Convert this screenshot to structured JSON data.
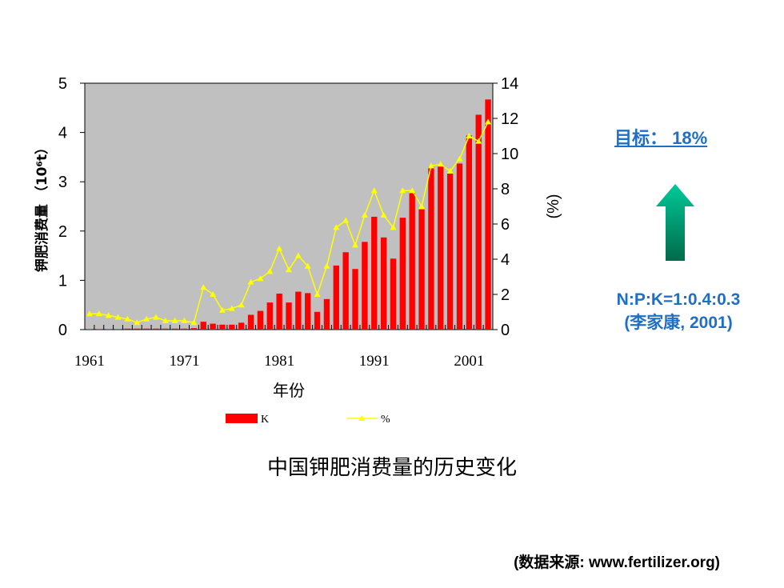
{
  "chart_data": {
    "type": "bar+line",
    "title": "中国钾肥消费量的历史变化",
    "xlabel": "年份",
    "ylabel_left": "钾肥消费量 （10⁶t）",
    "ylabel_right": "(%)",
    "ylim_left": [
      0,
      5
    ],
    "ylim_right": [
      0,
      14
    ],
    "yticks_left": [
      "0",
      "1",
      "2",
      "3",
      "4",
      "5"
    ],
    "yticks_right": [
      "0",
      "2",
      "4",
      "6",
      "8",
      "10",
      "12",
      "14"
    ],
    "xticks": [
      "1961",
      "1971",
      "1981",
      "1991",
      "2001"
    ],
    "x": [
      1961,
      1962,
      1963,
      1964,
      1965,
      1966,
      1967,
      1968,
      1969,
      1970,
      1971,
      1972,
      1973,
      1974,
      1975,
      1976,
      1977,
      1978,
      1979,
      1980,
      1981,
      1982,
      1983,
      1984,
      1985,
      1986,
      1987,
      1988,
      1989,
      1990,
      1991,
      1992,
      1993,
      1994,
      1995,
      1996,
      1997,
      1998,
      1999,
      2000,
      2001,
      2002,
      2003
    ],
    "series": [
      {
        "name": "K",
        "kind": "bar",
        "axis": "left",
        "color": "#ff0000",
        "values": [
          0.01,
          0.01,
          0.01,
          0.01,
          0.02,
          0.02,
          0.02,
          0.02,
          0.02,
          0.02,
          0.02,
          0.03,
          0.16,
          0.12,
          0.1,
          0.1,
          0.14,
          0.3,
          0.38,
          0.55,
          0.73,
          0.55,
          0.77,
          0.74,
          0.36,
          0.62,
          1.3,
          1.57,
          1.23,
          1.78,
          2.29,
          1.87,
          1.44,
          2.27,
          2.77,
          2.44,
          3.3,
          3.33,
          3.17,
          3.37,
          3.94,
          4.36,
          4.67
        ]
      },
      {
        "name": "%",
        "kind": "line",
        "axis": "right",
        "color": "#ffff00",
        "values": [
          0.9,
          0.9,
          0.8,
          0.7,
          0.6,
          0.4,
          0.6,
          0.7,
          0.5,
          0.5,
          0.5,
          0.4,
          2.4,
          2.0,
          1.1,
          1.2,
          1.4,
          2.7,
          2.9,
          3.3,
          4.6,
          3.4,
          4.2,
          3.6,
          2.0,
          3.6,
          5.8,
          6.2,
          4.8,
          6.5,
          7.9,
          6.5,
          5.8,
          7.9,
          7.9,
          7.0,
          9.3,
          9.4,
          9.0,
          9.7,
          11.0,
          10.7,
          11.8
        ]
      }
    ],
    "legend": [
      "K",
      "%"
    ],
    "legend_position": "bottom",
    "plot_background": "#c0c0c0",
    "grid": false
  },
  "caption": "中国钾肥消费量的历史变化",
  "target_label": "目标： 18%",
  "ratio_line1": "N:P:K=1:0.4:0.3",
  "ratio_line2": "(李家康, 2001)",
  "source_note": "(数据来源: www.fertilizer.org)",
  "colors": {
    "accent_blue": "#1f6fc5",
    "arrow_top": "#00c99a",
    "arrow_bottom": "#006b4a"
  },
  "icons": {
    "arrow": "up-arrow-icon"
  }
}
